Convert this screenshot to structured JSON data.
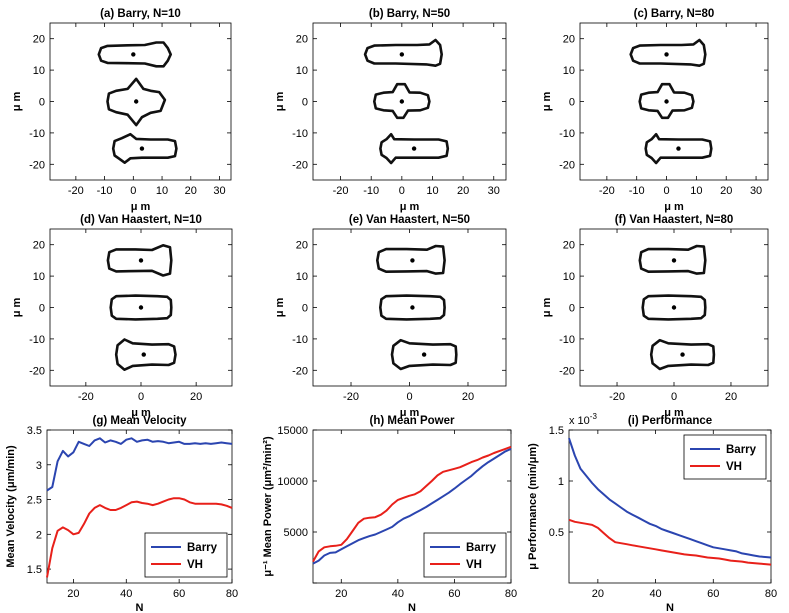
{
  "figure": {
    "panels": [
      {
        "id": "a",
        "title": "(a) Barry, N=10",
        "xlabel": "μ m",
        "ylabel": "μ m",
        "xticks": [
          -20,
          -10,
          0,
          10,
          20,
          30
        ],
        "yticks": [
          20,
          10,
          0,
          -10,
          -20
        ],
        "xlim": [
          -29,
          34
        ],
        "ylim": [
          -25,
          25
        ],
        "cells": [
          {
            "cx": 0,
            "cy": 15,
            "shape": "barry10_top"
          },
          {
            "cx": 1,
            "cy": 0,
            "shape": "barry10_mid"
          },
          {
            "cx": 3,
            "cy": -15,
            "shape": "barry10_bot"
          }
        ]
      },
      {
        "id": "b",
        "title": "(b) Barry, N=50",
        "xlabel": "μ m",
        "ylabel": "μ m",
        "xticks": [
          -20,
          -10,
          0,
          10,
          20,
          30
        ],
        "yticks": [
          20,
          10,
          0,
          -10,
          -20
        ],
        "xlim": [
          -29,
          34
        ],
        "ylim": [
          -25,
          25
        ],
        "cells": [
          {
            "cx": 0,
            "cy": 15,
            "shape": "barryN_top"
          },
          {
            "cx": 0,
            "cy": 0,
            "shape": "barryN_mid"
          },
          {
            "cx": 4,
            "cy": -15,
            "shape": "barryN_bot"
          }
        ]
      },
      {
        "id": "c",
        "title": "(c) Barry, N=80",
        "xlabel": "μ m",
        "ylabel": "μ m",
        "xticks": [
          -20,
          -10,
          0,
          10,
          20,
          30
        ],
        "yticks": [
          20,
          10,
          0,
          -10,
          -20
        ],
        "xlim": [
          -29,
          34
        ],
        "ylim": [
          -25,
          25
        ],
        "cells": [
          {
            "cx": 0,
            "cy": 15,
            "shape": "barryN_top"
          },
          {
            "cx": 0,
            "cy": 0,
            "shape": "barryN_mid"
          },
          {
            "cx": 4,
            "cy": -15,
            "shape": "barryN_bot"
          }
        ]
      },
      {
        "id": "d",
        "title": "(d) Van Haastert, N=10",
        "xlabel": "μ m",
        "ylabel": "μ m",
        "xticks": [
          -20,
          0,
          20
        ],
        "yticks": [
          20,
          10,
          0,
          -10,
          -20
        ],
        "xlim": [
          -33,
          33
        ],
        "ylim": [
          -25,
          25
        ],
        "cells": [
          {
            "cx": 0,
            "cy": 15,
            "shape": "vh10_top"
          },
          {
            "cx": 0,
            "cy": 0,
            "shape": "vh_mid"
          },
          {
            "cx": 1,
            "cy": -15,
            "shape": "vh10_bot"
          }
        ]
      },
      {
        "id": "e",
        "title": "(e) Van Haastert, N=50",
        "xlabel": "μ m",
        "ylabel": "μ m",
        "xticks": [
          -20,
          0,
          20
        ],
        "yticks": [
          20,
          10,
          0,
          -10,
          -20
        ],
        "xlim": [
          -33,
          33
        ],
        "ylim": [
          -25,
          25
        ],
        "cells": [
          {
            "cx": 1,
            "cy": 15,
            "shape": "vhN_top"
          },
          {
            "cx": 1,
            "cy": 0,
            "shape": "vh_mid"
          },
          {
            "cx": 5,
            "cy": -15,
            "shape": "vhN_bot"
          }
        ]
      },
      {
        "id": "f",
        "title": "(f) Van Haastert, N=80",
        "xlabel": "μ m",
        "ylabel": "μ m",
        "xticks": [
          -20,
          0,
          20
        ],
        "yticks": [
          20,
          10,
          0,
          -10,
          -20
        ],
        "xlim": [
          -33,
          33
        ],
        "ylim": [
          -25,
          25
        ],
        "cells": [
          {
            "cx": 0,
            "cy": 15,
            "shape": "vhN_top"
          },
          {
            "cx": 0,
            "cy": 0,
            "shape": "vh_mid"
          },
          {
            "cx": 3,
            "cy": -15,
            "shape": "vhN_bot"
          }
        ]
      }
    ]
  },
  "colors": {
    "barry": "#2b45b0",
    "vh": "#e8201a"
  },
  "chart_data": [
    {
      "type": "line",
      "title": "(g) Mean Velocity",
      "xlabel": "N",
      "ylabel": "Mean Velocity (μm/min)",
      "xlim": [
        10,
        80
      ],
      "ylim": [
        1.3,
        3.5
      ],
      "xticks": [
        20,
        40,
        60,
        80
      ],
      "yticks": [
        1.5,
        2,
        2.5,
        3,
        3.5
      ],
      "ytick_labels": [
        "1.5",
        "2",
        "2.5",
        "3",
        "3.5"
      ],
      "legend_loc": "bottom-right",
      "x": [
        10,
        12,
        14,
        16,
        18,
        20,
        22,
        24,
        26,
        28,
        30,
        32,
        34,
        36,
        38,
        40,
        42,
        44,
        46,
        48,
        50,
        52,
        54,
        56,
        58,
        60,
        62,
        64,
        66,
        68,
        70,
        72,
        74,
        76,
        78,
        80
      ],
      "series": [
        {
          "name": "Barry",
          "color": "#2b45b0",
          "values": [
            2.63,
            2.68,
            3.05,
            3.2,
            3.12,
            3.18,
            3.33,
            3.3,
            3.27,
            3.35,
            3.38,
            3.32,
            3.35,
            3.33,
            3.3,
            3.36,
            3.38,
            3.33,
            3.35,
            3.36,
            3.33,
            3.34,
            3.33,
            3.31,
            3.32,
            3.33,
            3.3,
            3.3,
            3.31,
            3.3,
            3.31,
            3.3,
            3.31,
            3.32,
            3.31,
            3.3
          ]
        },
        {
          "name": "VH",
          "color": "#e8201a",
          "values": [
            1.38,
            1.8,
            2.05,
            2.1,
            2.06,
            2.0,
            2.02,
            2.15,
            2.3,
            2.38,
            2.42,
            2.38,
            2.35,
            2.35,
            2.38,
            2.42,
            2.46,
            2.47,
            2.45,
            2.44,
            2.42,
            2.44,
            2.47,
            2.5,
            2.52,
            2.52,
            2.5,
            2.46,
            2.44,
            2.44,
            2.44,
            2.44,
            2.44,
            2.43,
            2.41,
            2.38
          ]
        }
      ]
    },
    {
      "type": "line",
      "title": "(h) Mean Power",
      "xlabel": "N",
      "ylabel": "μ⁻¹ Mean Power (μm²/min²)",
      "xlim": [
        10,
        80
      ],
      "ylim": [
        0,
        15000
      ],
      "xticks": [
        20,
        40,
        60,
        80
      ],
      "yticks": [
        0,
        5000,
        10000,
        15000
      ],
      "ytick_labels": [
        "",
        "5000",
        "10000",
        "15000"
      ],
      "legend_loc": "bottom-right",
      "x": [
        10,
        12,
        14,
        16,
        18,
        20,
        22,
        24,
        26,
        28,
        30,
        32,
        34,
        36,
        38,
        40,
        42,
        44,
        46,
        48,
        50,
        52,
        54,
        56,
        58,
        60,
        62,
        64,
        66,
        68,
        70,
        72,
        74,
        76,
        78,
        80
      ],
      "series": [
        {
          "name": "Barry",
          "color": "#2b45b0",
          "values": [
            1900,
            2200,
            2700,
            2950,
            3000,
            3300,
            3600,
            3900,
            4200,
            4400,
            4600,
            4750,
            5000,
            5250,
            5500,
            5950,
            6300,
            6550,
            6850,
            7150,
            7450,
            7800,
            8150,
            8500,
            8850,
            9250,
            9700,
            10100,
            10500,
            11000,
            11450,
            11850,
            12200,
            12550,
            12900,
            13150
          ]
        },
        {
          "name": "VH",
          "color": "#e8201a",
          "values": [
            2100,
            3100,
            3500,
            3600,
            3650,
            3750,
            4300,
            5100,
            5900,
            6300,
            6400,
            6450,
            6700,
            7100,
            7700,
            8150,
            8350,
            8550,
            8700,
            9000,
            9500,
            10000,
            10550,
            10900,
            11050,
            11200,
            11350,
            11600,
            11850,
            12050,
            12300,
            12500,
            12750,
            12950,
            13150,
            13350
          ]
        }
      ]
    },
    {
      "type": "line",
      "title": "(i) Performance",
      "exponent_label": "x 10",
      "exponent_power": "-3",
      "xlabel": "N",
      "ylabel": "μ Performance (min/μm)",
      "xlim": [
        10,
        80
      ],
      "ylim": [
        0,
        1.5
      ],
      "xticks": [
        20,
        40,
        60,
        80
      ],
      "yticks": [
        0.5,
        1,
        1.5
      ],
      "ytick_labels": [
        "0.5",
        "1",
        "1.5"
      ],
      "legend_loc": "top-right",
      "x": [
        10,
        12,
        14,
        16,
        18,
        20,
        22,
        24,
        26,
        28,
        30,
        32,
        34,
        36,
        38,
        40,
        42,
        44,
        46,
        48,
        50,
        52,
        54,
        56,
        58,
        60,
        62,
        64,
        66,
        68,
        70,
        72,
        74,
        76,
        78,
        80
      ],
      "series": [
        {
          "name": "Barry",
          "color": "#2b45b0",
          "values": [
            1.42,
            1.25,
            1.12,
            1.05,
            0.98,
            0.92,
            0.87,
            0.82,
            0.78,
            0.74,
            0.7,
            0.67,
            0.64,
            0.61,
            0.58,
            0.56,
            0.53,
            0.51,
            0.49,
            0.47,
            0.45,
            0.43,
            0.41,
            0.39,
            0.37,
            0.35,
            0.34,
            0.33,
            0.32,
            0.31,
            0.29,
            0.28,
            0.27,
            0.26,
            0.255,
            0.25
          ]
        },
        {
          "name": "VH",
          "color": "#e8201a",
          "values": [
            0.62,
            0.6,
            0.59,
            0.58,
            0.57,
            0.54,
            0.49,
            0.44,
            0.4,
            0.39,
            0.38,
            0.37,
            0.36,
            0.35,
            0.34,
            0.33,
            0.32,
            0.31,
            0.3,
            0.29,
            0.28,
            0.275,
            0.27,
            0.26,
            0.25,
            0.245,
            0.24,
            0.23,
            0.22,
            0.215,
            0.21,
            0.2,
            0.195,
            0.19,
            0.185,
            0.18
          ]
        }
      ]
    }
  ]
}
